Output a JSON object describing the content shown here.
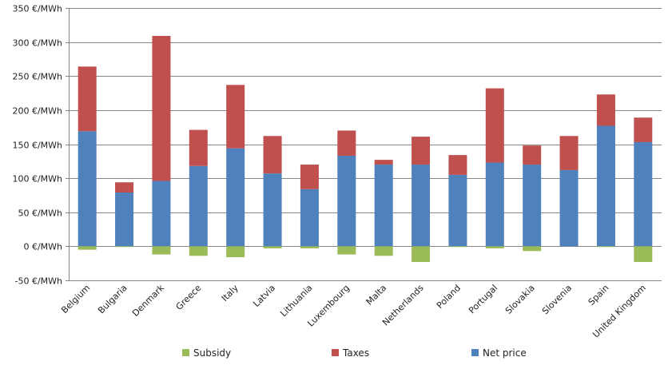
{
  "chart_data": {
    "type": "bar",
    "stacked": true,
    "title": "",
    "xlabel": "",
    "ylabel": "",
    "ylim": [
      -50,
      350
    ],
    "y_ticks": [
      -50,
      0,
      50,
      100,
      150,
      200,
      250,
      300,
      350
    ],
    "y_tick_labels": [
      "-50 €/MWh",
      "0 €/MWh",
      "50 €/MWh",
      "100 €/MWh",
      "150 €/MWh",
      "200 €/MWh",
      "250 €/MWh",
      "300 €/MWh",
      "350 €/MWh"
    ],
    "grid": true,
    "legend_position": "bottom",
    "categories": [
      "Belgium",
      "Bulgaria",
      "Denmark",
      "Greece",
      "Italy",
      "Latvia",
      "Lithuania",
      "Luxembourg",
      "Malta",
      "Netherlands",
      "Poland",
      "Portugal",
      "Slovakia",
      "Slovenia",
      "Spain",
      "United Kingdom"
    ],
    "series": [
      {
        "name": "Subsidy",
        "color": "#9BBB59",
        "values": [
          -5,
          -1,
          -12,
          -14,
          -16,
          -3,
          -3,
          -12,
          -14,
          -23,
          -1,
          -3,
          -7,
          0,
          -1,
          -23
        ]
      },
      {
        "name": "Taxes",
        "color": "#C0504D",
        "values": [
          95,
          15,
          213,
          53,
          93,
          55,
          36,
          37,
          7,
          41,
          29,
          109,
          28,
          50,
          46,
          36
        ]
      },
      {
        "name": "Net price",
        "color": "#4F81BD",
        "values": [
          169,
          79,
          96,
          118,
          144,
          107,
          84,
          133,
          120,
          120,
          105,
          123,
          120,
          112,
          177,
          153
        ]
      }
    ]
  }
}
